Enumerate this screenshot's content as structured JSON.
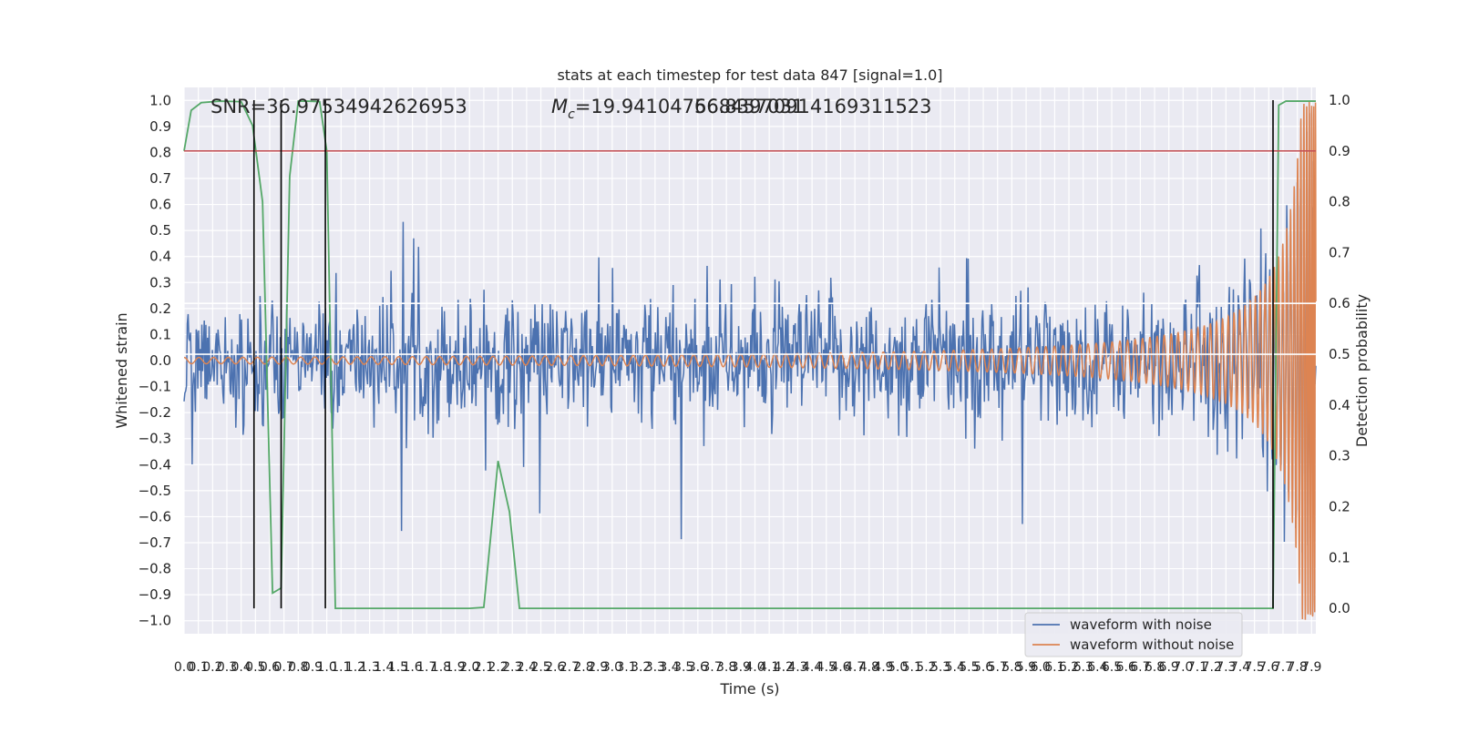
{
  "chart_data": {
    "type": "line",
    "title": "stats at each timestep for test data 847 [signal=1.0]",
    "xlabel": "Time (s)",
    "ylabel_left": "Whitened strain",
    "ylabel_right": "Detection probability",
    "xlim": [
      0.0,
      7.93
    ],
    "ylim_left": [
      -1.05,
      1.05
    ],
    "ylim_right": [
      -0.05,
      1.025
    ],
    "grid": true,
    "background": "#eaeaf2",
    "annotations": {
      "snr": "SNR=36.97534942626953",
      "mc": "$M_c$=19.941047668457031",
      "mc_overlap": "56.83970914169311523"
    },
    "x_tick_step": 0.1,
    "y_left_ticks": [
      -1.0,
      -0.9,
      -0.8,
      -0.7,
      -0.6,
      -0.5,
      -0.4,
      -0.3,
      -0.2,
      -0.1,
      0.0,
      0.1,
      0.2,
      0.3,
      0.4,
      0.5,
      0.6,
      0.7,
      0.8,
      0.9,
      1.0
    ],
    "y_right_ticks": [
      0.0,
      0.1,
      0.2,
      0.3,
      0.4,
      0.5,
      0.6,
      0.7,
      0.8,
      0.9,
      1.0
    ],
    "legend": {
      "placement": "lower-right",
      "entries": [
        {
          "label": "waveform with noise",
          "color": "#4c72b0"
        },
        {
          "label": "waveform without noise",
          "color": "#dd8452"
        }
      ]
    },
    "series": [
      {
        "name": "waveform with noise",
        "axis": "left",
        "color": "#4c72b0",
        "kind": "noise",
        "envelope_std": 0.12,
        "samples": 1400
      },
      {
        "name": "waveform without noise",
        "axis": "left",
        "color": "#dd8452",
        "kind": "chirp",
        "start_amplitude": 0.012,
        "end_amplitude": 1.0,
        "start_cycles_per_s": 6,
        "merger_time": 7.93
      },
      {
        "axis": "right",
        "color": "#55a868",
        "kind": "probability",
        "x": [
          0.0,
          0.05,
          0.12,
          0.25,
          0.4,
          0.48,
          0.55,
          0.62,
          0.68,
          0.74,
          0.8,
          0.86,
          0.95,
          1.0,
          1.06,
          1.12,
          1.5,
          2.0,
          2.1,
          2.2,
          2.28,
          2.35,
          2.6,
          3.5,
          5.0,
          6.0,
          7.3,
          7.55,
          7.6,
          7.63,
          7.67,
          7.72,
          7.8,
          7.93
        ],
        "y": [
          0.9,
          0.98,
          0.995,
          0.998,
          0.997,
          0.95,
          0.8,
          0.03,
          0.04,
          0.85,
          0.998,
          0.998,
          0.997,
          0.9,
          0.0,
          0.0,
          0.0,
          0.0,
          0.002,
          0.29,
          0.19,
          0.0,
          0.0,
          0.0,
          0.0,
          0.0,
          0.0,
          0.0,
          0.0,
          0.0,
          0.99,
          0.998,
          0.998,
          0.998
        ]
      }
    ],
    "threshold_right": {
      "value": 0.9,
      "color": "#c44e52"
    },
    "vertical_lines_x": [
      0.49,
      0.68,
      0.99,
      7.63
    ],
    "vertical_lines_range_right": [
      0.0,
      1.0
    ],
    "white_hlines_right": [
      0.6,
      0.5
    ]
  }
}
